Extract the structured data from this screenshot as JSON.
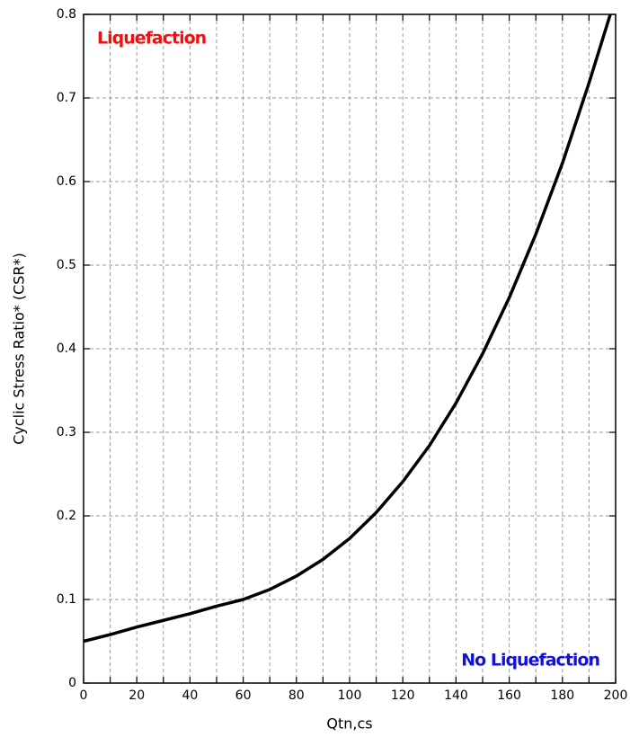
{
  "chart_data": {
    "type": "line",
    "x_label": "Qtn,cs",
    "y_label": "Cyclic Stress Ratio* (CSR*)",
    "annotations": [
      "Liquefaction",
      "No Liquefaction"
    ],
    "annotation_colors": [
      "#ee1111",
      "#1111dd"
    ],
    "x": [
      0,
      10,
      20,
      30,
      40,
      50,
      60,
      70,
      80,
      90,
      100,
      110,
      120,
      130,
      140,
      150,
      160,
      170,
      180,
      190,
      198
    ],
    "series": [
      {
        "color": "#000000",
        "values": [
          0.05,
          0.058,
          0.067,
          0.075,
          0.083,
          0.092,
          0.1,
          0.112,
          0.128,
          0.148,
          0.173,
          0.204,
          0.241,
          0.284,
          0.335,
          0.394,
          0.461,
          0.537,
          0.622,
          0.718,
          0.8
        ]
      }
    ],
    "xlim": [
      0,
      200
    ],
    "ylim": [
      0,
      0.8
    ],
    "xticks": [
      0,
      20,
      40,
      60,
      80,
      100,
      120,
      140,
      160,
      180,
      200
    ],
    "xminor": [
      10,
      30,
      50,
      70,
      90,
      110,
      130,
      150,
      170,
      190
    ],
    "yticks": [
      0,
      0.1,
      0.2,
      0.3,
      0.4,
      0.5,
      0.6,
      0.7,
      0.8
    ],
    "grid": true
  }
}
